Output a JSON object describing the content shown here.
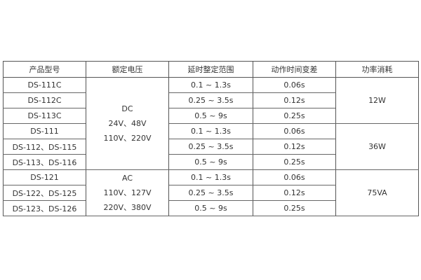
{
  "headers": [
    "产品型号",
    "额定电压",
    "延时整定范围",
    "动作时间变差",
    "功率消耗"
  ],
  "models": [
    "DS-111C",
    "DS-112C",
    "DS-113C",
    "DS-111",
    "DS-112、DS-115",
    "DS-113、DS-116",
    "DS-121",
    "DS-122、DS-125",
    "DS-123、DS-126"
  ],
  "voltage_groups": [
    {
      "lines": [
        "DC",
        "24V、48V",
        "110V、220V"
      ]
    },
    {
      "lines": [
        "AC",
        "110V、127V",
        "220V、380V"
      ]
    }
  ],
  "delay_ranges": [
    "0.1 ~ 1.3s",
    "0.25 ~ 3.5s",
    "0.5 ~ 9s",
    "0.1 ~ 1.3s",
    "0.25 ~ 3.5s",
    "0.5 ~ 9s",
    "0.1 ~ 1.3s",
    "0.25 ~ 3.5s",
    "0.5 ~ 9s"
  ],
  "time_variations": [
    "0.06s",
    "0.12s",
    "0.25s",
    "0.06s",
    "0.12s",
    "0.25s",
    "0.06s",
    "0.12s",
    "0.25s"
  ],
  "power": [
    "12W",
    "36W",
    "75VA"
  ]
}
